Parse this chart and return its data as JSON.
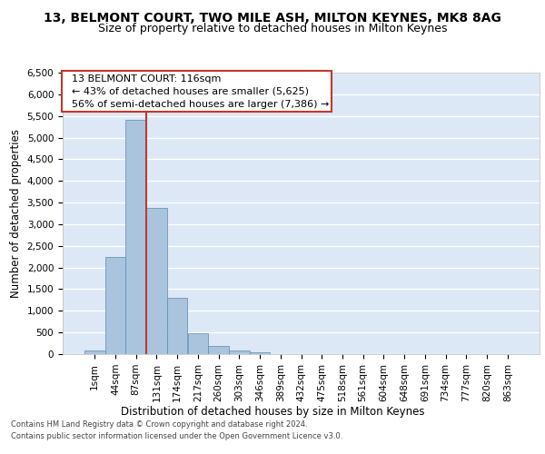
{
  "title_line1": "13, BELMONT COURT, TWO MILE ASH, MILTON KEYNES, MK8 8AG",
  "title_line2": "Size of property relative to detached houses in Milton Keynes",
  "xlabel": "Distribution of detached houses by size in Milton Keynes",
  "ylabel": "Number of detached properties",
  "footer_line1": "Contains HM Land Registry data © Crown copyright and database right 2024.",
  "footer_line2": "Contains public sector information licensed under the Open Government Licence v3.0.",
  "bar_labels": [
    "1sqm",
    "44sqm",
    "87sqm",
    "131sqm",
    "174sqm",
    "217sqm",
    "260sqm",
    "303sqm",
    "346sqm",
    "389sqm",
    "432sqm",
    "475sqm",
    "518sqm",
    "561sqm",
    "604sqm",
    "648sqm",
    "691sqm",
    "734sqm",
    "777sqm",
    "820sqm",
    "863sqm"
  ],
  "bar_values": [
    75,
    2250,
    5400,
    3380,
    1310,
    490,
    185,
    85,
    40,
    0,
    0,
    0,
    0,
    0,
    0,
    0,
    0,
    0,
    0,
    0,
    0
  ],
  "bar_color": "#aac4de",
  "bar_edge_color": "#5a8ab0",
  "vline_x": 2.5,
  "vline_color": "#c0392b",
  "annotation_text": "  13 BELMONT COURT: 116sqm\n  ← 43% of detached houses are smaller (5,625)\n  56% of semi-detached houses are larger (7,386) →",
  "annotation_box_color": "#ffffff",
  "annotation_box_edge_color": "#c0392b",
  "ylim": [
    0,
    6500
  ],
  "yticks": [
    0,
    500,
    1000,
    1500,
    2000,
    2500,
    3000,
    3500,
    4000,
    4500,
    5000,
    5500,
    6000,
    6500
  ],
  "bg_color": "#dce8f5",
  "grid_color": "#ffffff",
  "title_fontsize": 10,
  "subtitle_fontsize": 9,
  "axis_label_fontsize": 8.5,
  "tick_fontsize": 7.5,
  "annotation_fontsize": 8
}
